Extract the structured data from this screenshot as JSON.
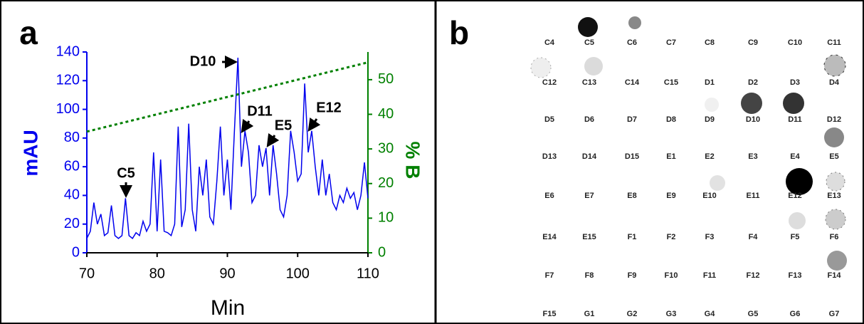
{
  "chart_data": {
    "type": "line",
    "panel_label": "a",
    "ylabel": "mAU",
    "y2label": "% B",
    "xlabel": "Min",
    "xlim": [
      70,
      110
    ],
    "xticks": [
      70,
      80,
      90,
      100,
      110
    ],
    "ylim": [
      0,
      140
    ],
    "yticks": [
      0,
      20,
      40,
      60,
      80,
      100,
      120,
      140
    ],
    "y2lim": [
      0,
      58
    ],
    "y2ticks": [
      0,
      10,
      20,
      30,
      40,
      50
    ],
    "series": [
      {
        "color": "#0000ee",
        "style": "solid",
        "x": [
          70,
          70.5,
          71,
          71.5,
          72,
          72.5,
          73,
          73.5,
          74,
          74.5,
          75,
          75.5,
          76,
          76.5,
          77,
          77.5,
          78,
          78.5,
          79,
          79.5,
          80,
          80.5,
          81,
          81.5,
          82,
          82.5,
          83,
          83.5,
          84,
          84.5,
          85,
          85.5,
          86,
          86.5,
          87,
          87.5,
          88,
          88.5,
          89,
          89.5,
          90,
          90.5,
          91,
          91.5,
          92,
          92.5,
          93,
          93.5,
          94,
          94.5,
          95,
          95.5,
          96,
          96.5,
          97,
          97.5,
          98,
          98.5,
          99,
          99.5,
          100,
          100.5,
          101,
          101.5,
          102,
          102.5,
          103,
          103.5,
          104,
          104.5,
          105,
          105.5,
          106,
          106.5,
          107,
          107.5,
          108,
          108.5,
          109,
          109.5,
          110
        ],
        "values": [
          10,
          15,
          35,
          20,
          27,
          12,
          14,
          33,
          12,
          10,
          12,
          38,
          12,
          10,
          14,
          12,
          22,
          15,
          20,
          70,
          15,
          65,
          15,
          14,
          12,
          20,
          88,
          18,
          30,
          90,
          30,
          15,
          60,
          40,
          65,
          25,
          20,
          50,
          88,
          40,
          65,
          30,
          85,
          136,
          60,
          85,
          70,
          35,
          40,
          75,
          60,
          73,
          40,
          75,
          55,
          30,
          25,
          40,
          85,
          70,
          50,
          55,
          118,
          70,
          85,
          60,
          40,
          65,
          40,
          55,
          35,
          30,
          40,
          35,
          45,
          38,
          42,
          30,
          40,
          63,
          38
        ]
      },
      {
        "color": "#008000",
        "style": "dotted",
        "axis": "y2",
        "x": [
          70,
          110
        ],
        "values": [
          35,
          55
        ]
      }
    ],
    "annotations": [
      "D10",
      "D11",
      "E5",
      "E12",
      "C5"
    ]
  },
  "blot": {
    "panel_label": "b",
    "rows": [
      [
        "C4",
        "C5",
        "C6",
        "C7",
        "C8",
        "C9",
        "C10",
        "C11"
      ],
      [
        "C12",
        "C13",
        "C14",
        "C15",
        "D1",
        "D2",
        "D3",
        "D4"
      ],
      [
        "D5",
        "D6",
        "D7",
        "D8",
        "D9",
        "D10",
        "D11",
        "D12"
      ],
      [
        "D13",
        "D14",
        "D15",
        "E1",
        "E2",
        "E3",
        "E4",
        "E5"
      ],
      [
        "E6",
        "E7",
        "E8",
        "E9",
        "E10",
        "E11",
        "E12",
        "E13"
      ],
      [
        "E14",
        "E15",
        "F1",
        "F2",
        "F3",
        "F4",
        "F5",
        "F6"
      ],
      [
        "F7",
        "F8",
        "F9",
        "F10",
        "F11",
        "F12",
        "F13",
        "F14"
      ],
      [
        "F15",
        "G1",
        "G2",
        "G3",
        "G4",
        "G5",
        "G6",
        "G7"
      ]
    ]
  }
}
